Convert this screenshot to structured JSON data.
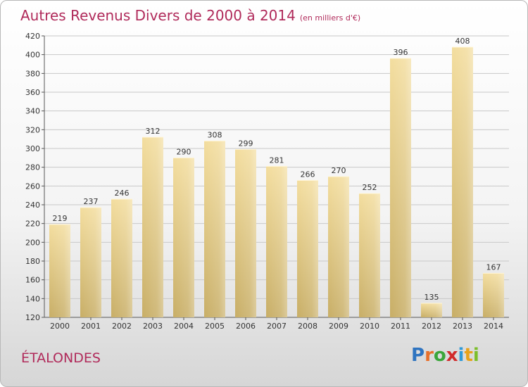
{
  "header": {
    "title": "Autres Revenus Divers de 2000 à 2014",
    "unit": "(en milliers d'€)"
  },
  "commune": "ÉTALONDES",
  "logo": {
    "letters": [
      {
        "char": "P",
        "color": "#2f74c0"
      },
      {
        "char": "r",
        "color": "#e8702a"
      },
      {
        "char": "o",
        "color": "#3aa63a"
      },
      {
        "char": "x",
        "color": "#d12b2b"
      },
      {
        "char": "i",
        "color": "#2f9ad8"
      },
      {
        "char": "t",
        "color": "#e8a21a"
      },
      {
        "char": "i",
        "color": "#7cbf2b"
      }
    ]
  },
  "colors": {
    "title": "#b02a5a",
    "bar_light": "#f3dd9e",
    "bar_dark": "#c8ae66",
    "grid": "#c8c8c8"
  },
  "chart_data": {
    "type": "bar",
    "title": "Autres Revenus Divers de 2000 à 2014",
    "subtitle": "(en milliers d'€)",
    "categories": [
      "2000",
      "2001",
      "2002",
      "2003",
      "2004",
      "2005",
      "2006",
      "2007",
      "2008",
      "2009",
      "2010",
      "2011",
      "2012",
      "2013",
      "2014"
    ],
    "values": [
      219,
      237,
      246,
      312,
      290,
      308,
      299,
      281,
      266,
      270,
      252,
      396,
      135,
      408,
      167
    ],
    "ylim": [
      120,
      420
    ],
    "yticks": [
      120,
      140,
      160,
      180,
      200,
      220,
      240,
      260,
      280,
      300,
      320,
      340,
      360,
      380,
      400,
      420
    ],
    "grid": true,
    "data_labels": true
  }
}
